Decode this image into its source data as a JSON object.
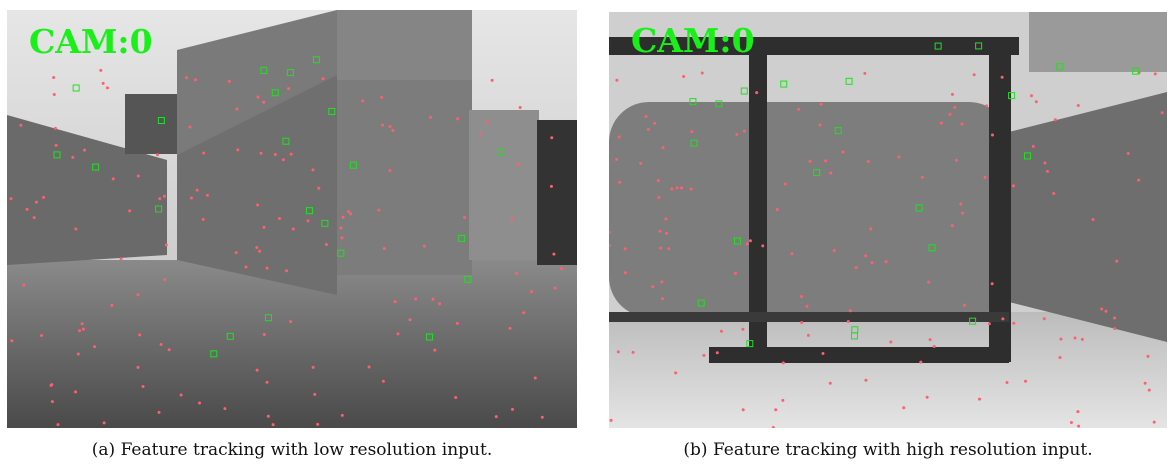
{
  "panels": [
    {
      "overlay": "CAM:0",
      "caption": "(a) Feature tracking with low resolution input."
    },
    {
      "overlay": "CAM:0",
      "caption": "(b) Feature tracking with high resolution input."
    }
  ]
}
